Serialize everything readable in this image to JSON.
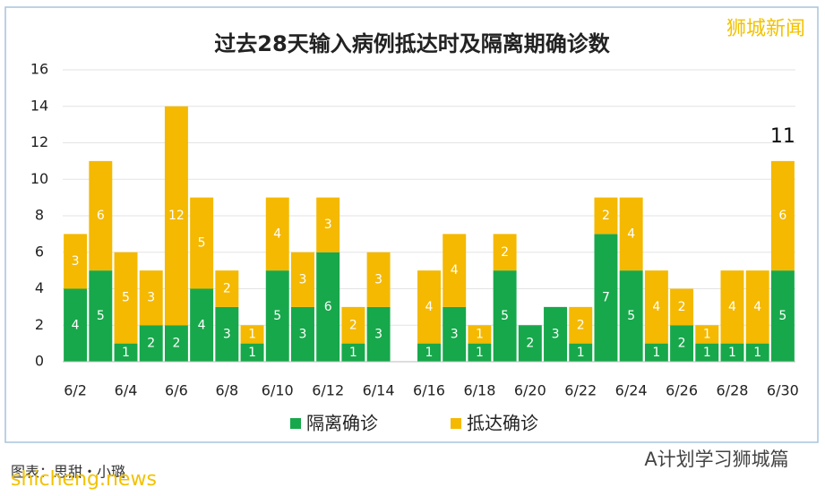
{
  "chart_data": {
    "type": "stacked_bar",
    "title": "过去28天输入病例抵达时及隔离期确诊数",
    "categories": [
      "6/2",
      null,
      "6/4",
      null,
      "6/6",
      null,
      "6/8",
      null,
      "6/10",
      null,
      "6/12",
      null,
      "6/14",
      null,
      "6/16",
      null,
      "6/18",
      null,
      "6/20",
      null,
      "6/22",
      null,
      "6/24",
      null,
      "6/26",
      null,
      "6/28",
      null,
      "6/30"
    ],
    "series": [
      {
        "name": "隔离确诊",
        "color": "#17a84b",
        "values": [
          4,
          5,
          1,
          2,
          2,
          4,
          3,
          1,
          5,
          3,
          6,
          1,
          3,
          0,
          1,
          3,
          1,
          5,
          2,
          3,
          1,
          7,
          5,
          1,
          2,
          1,
          1,
          1,
          5
        ]
      },
      {
        "name": "抵达确诊",
        "color": "#f4b900",
        "values": [
          3,
          6,
          5,
          3,
          12,
          5,
          2,
          1,
          4,
          3,
          3,
          2,
          3,
          0,
          4,
          4,
          1,
          2,
          0,
          0,
          2,
          2,
          4,
          4,
          2,
          1,
          4,
          4,
          6
        ]
      }
    ],
    "ylim": [
      0,
      16
    ],
    "yticks": [
      0,
      2,
      4,
      6,
      8,
      10,
      12,
      14,
      16
    ],
    "grid": true,
    "annotation": "11",
    "watermark": "狮城新闻",
    "source": "图表：思甜・小璐",
    "site": "shicheng.news",
    "account": "A计划学习狮城篇"
  }
}
